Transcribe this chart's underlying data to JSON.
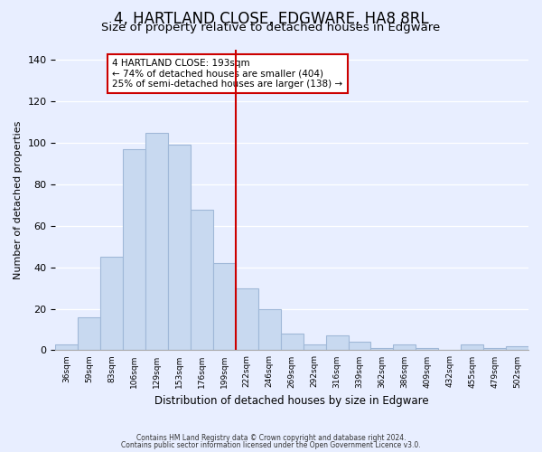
{
  "title": "4, HARTLAND CLOSE, EDGWARE, HA8 8RL",
  "subtitle": "Size of property relative to detached houses in Edgware",
  "xlabel": "Distribution of detached houses by size in Edgware",
  "ylabel": "Number of detached properties",
  "bin_labels": [
    "36sqm",
    "59sqm",
    "83sqm",
    "106sqm",
    "129sqm",
    "153sqm",
    "176sqm",
    "199sqm",
    "222sqm",
    "246sqm",
    "269sqm",
    "292sqm",
    "316sqm",
    "339sqm",
    "362sqm",
    "386sqm",
    "409sqm",
    "432sqm",
    "455sqm",
    "479sqm",
    "502sqm"
  ],
  "bar_values": [
    3,
    16,
    45,
    97,
    105,
    99,
    68,
    42,
    30,
    20,
    8,
    3,
    7,
    4,
    1,
    3,
    1,
    0,
    3,
    1,
    2
  ],
  "bar_color": "#c8d9f0",
  "bar_edge_color": "#a0b8d8",
  "vline_pos": 7.5,
  "vline_color": "#cc0000",
  "annotation_title": "4 HARTLAND CLOSE: 193sqm",
  "annotation_line1": "← 74% of detached houses are smaller (404)",
  "annotation_line2": "25% of semi-detached houses are larger (138) →",
  "annotation_box_color": "#ffffff",
  "annotation_box_edge": "#cc0000",
  "ylim": [
    0,
    145
  ],
  "footer1": "Contains HM Land Registry data © Crown copyright and database right 2024.",
  "footer2": "Contains public sector information licensed under the Open Government Licence v3.0.",
  "background_color": "#e8eeff",
  "grid_color": "#ffffff",
  "title_fontsize": 12,
  "subtitle_fontsize": 9.5
}
